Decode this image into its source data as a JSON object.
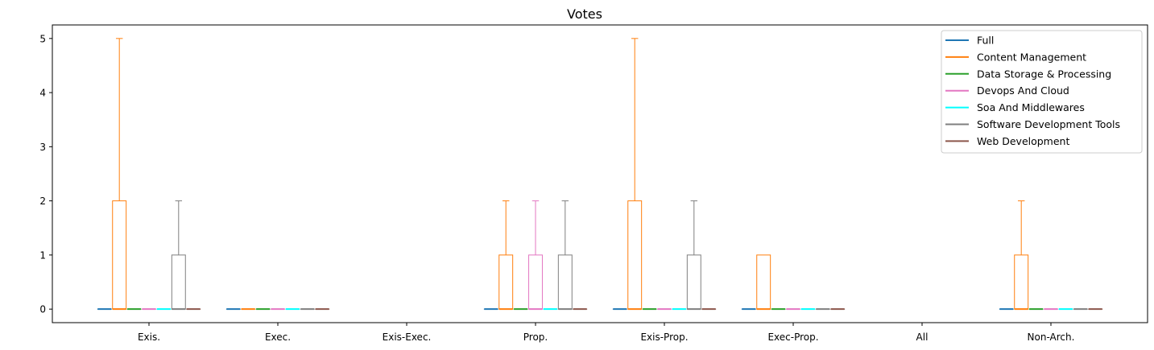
{
  "chart_data": {
    "type": "box",
    "title": "Votes",
    "xlabel": "",
    "ylabel": "",
    "ylim": [
      -0.25,
      5.25
    ],
    "yticks": [
      "0",
      "1",
      "2",
      "3",
      "4",
      "5"
    ],
    "categories": [
      "Exis.",
      "Exec.",
      "Exis-Exec.",
      "Prop.",
      "Exis-Prop.",
      "Exec-Prop.",
      "All",
      "Non-Arch."
    ],
    "legend_position": "top-right",
    "grid": false,
    "series": [
      {
        "name": "Full",
        "color": "#1f77b4",
        "boxes": [
          {
            "q1": 0,
            "q3": 0,
            "wlo": 0,
            "whi": 0
          },
          {
            "q1": 0,
            "q3": 0,
            "wlo": 0,
            "whi": 0
          },
          null,
          {
            "q1": 0,
            "q3": 0,
            "wlo": 0,
            "whi": 0
          },
          {
            "q1": 0,
            "q3": 0,
            "wlo": 0,
            "whi": 0
          },
          {
            "q1": 0,
            "q3": 0,
            "wlo": 0,
            "whi": 0
          },
          null,
          {
            "q1": 0,
            "q3": 0,
            "wlo": 0,
            "whi": 0
          }
        ]
      },
      {
        "name": "Content Management",
        "color": "#ff7f0e",
        "boxes": [
          {
            "q1": 0,
            "q3": 2,
            "wlo": 0,
            "whi": 5
          },
          {
            "q1": 0,
            "q3": 0,
            "wlo": 0,
            "whi": 0
          },
          null,
          {
            "q1": 0,
            "q3": 1,
            "wlo": 0,
            "whi": 2
          },
          {
            "q1": 0,
            "q3": 2,
            "wlo": 0,
            "whi": 5
          },
          {
            "q1": 0,
            "q3": 1,
            "wlo": 0,
            "whi": 1
          },
          null,
          {
            "q1": 0,
            "q3": 1,
            "wlo": 0,
            "whi": 2
          }
        ]
      },
      {
        "name": "Data Storage & Processing",
        "color": "#2ca02c",
        "boxes": [
          {
            "q1": 0,
            "q3": 0,
            "wlo": 0,
            "whi": 0
          },
          {
            "q1": 0,
            "q3": 0,
            "wlo": 0,
            "whi": 0
          },
          null,
          {
            "q1": 0,
            "q3": 0,
            "wlo": 0,
            "whi": 0
          },
          {
            "q1": 0,
            "q3": 0,
            "wlo": 0,
            "whi": 0
          },
          {
            "q1": 0,
            "q3": 0,
            "wlo": 0,
            "whi": 0
          },
          null,
          {
            "q1": 0,
            "q3": 0,
            "wlo": 0,
            "whi": 0
          }
        ]
      },
      {
        "name": "Devops And Cloud",
        "color": "#e377c2",
        "boxes": [
          {
            "q1": 0,
            "q3": 0,
            "wlo": 0,
            "whi": 0
          },
          {
            "q1": 0,
            "q3": 0,
            "wlo": 0,
            "whi": 0
          },
          null,
          {
            "q1": 0,
            "q3": 1,
            "wlo": 0,
            "whi": 2
          },
          {
            "q1": 0,
            "q3": 0,
            "wlo": 0,
            "whi": 0
          },
          {
            "q1": 0,
            "q3": 0,
            "wlo": 0,
            "whi": 0
          },
          null,
          {
            "q1": 0,
            "q3": 0,
            "wlo": 0,
            "whi": 0
          }
        ]
      },
      {
        "name": "Soa And Middlewares",
        "color": "#00ffff",
        "boxes": [
          {
            "q1": 0,
            "q3": 0,
            "wlo": 0,
            "whi": 0
          },
          {
            "q1": 0,
            "q3": 0,
            "wlo": 0,
            "whi": 0
          },
          null,
          {
            "q1": 0,
            "q3": 0,
            "wlo": 0,
            "whi": 0
          },
          {
            "q1": 0,
            "q3": 0,
            "wlo": 0,
            "whi": 0
          },
          {
            "q1": 0,
            "q3": 0,
            "wlo": 0,
            "whi": 0
          },
          null,
          {
            "q1": 0,
            "q3": 0,
            "wlo": 0,
            "whi": 0
          }
        ]
      },
      {
        "name": "Software Development Tools",
        "color": "#7f7f7f",
        "boxes": [
          {
            "q1": 0,
            "q3": 1,
            "wlo": 0,
            "whi": 2
          },
          {
            "q1": 0,
            "q3": 0,
            "wlo": 0,
            "whi": 0
          },
          null,
          {
            "q1": 0,
            "q3": 1,
            "wlo": 0,
            "whi": 2
          },
          {
            "q1": 0,
            "q3": 1,
            "wlo": 0,
            "whi": 2
          },
          {
            "q1": 0,
            "q3": 0,
            "wlo": 0,
            "whi": 0
          },
          null,
          {
            "q1": 0,
            "q3": 0,
            "wlo": 0,
            "whi": 0
          }
        ]
      },
      {
        "name": "Web Development",
        "color": "#8c564b",
        "boxes": [
          {
            "q1": 0,
            "q3": 0,
            "wlo": 0,
            "whi": 0
          },
          {
            "q1": 0,
            "q3": 0,
            "wlo": 0,
            "whi": 0
          },
          null,
          {
            "q1": 0,
            "q3": 0,
            "wlo": 0,
            "whi": 0
          },
          {
            "q1": 0,
            "q3": 0,
            "wlo": 0,
            "whi": 0
          },
          {
            "q1": 0,
            "q3": 0,
            "wlo": 0,
            "whi": 0
          },
          null,
          {
            "q1": 0,
            "q3": 0,
            "wlo": 0,
            "whi": 0
          }
        ]
      }
    ]
  }
}
